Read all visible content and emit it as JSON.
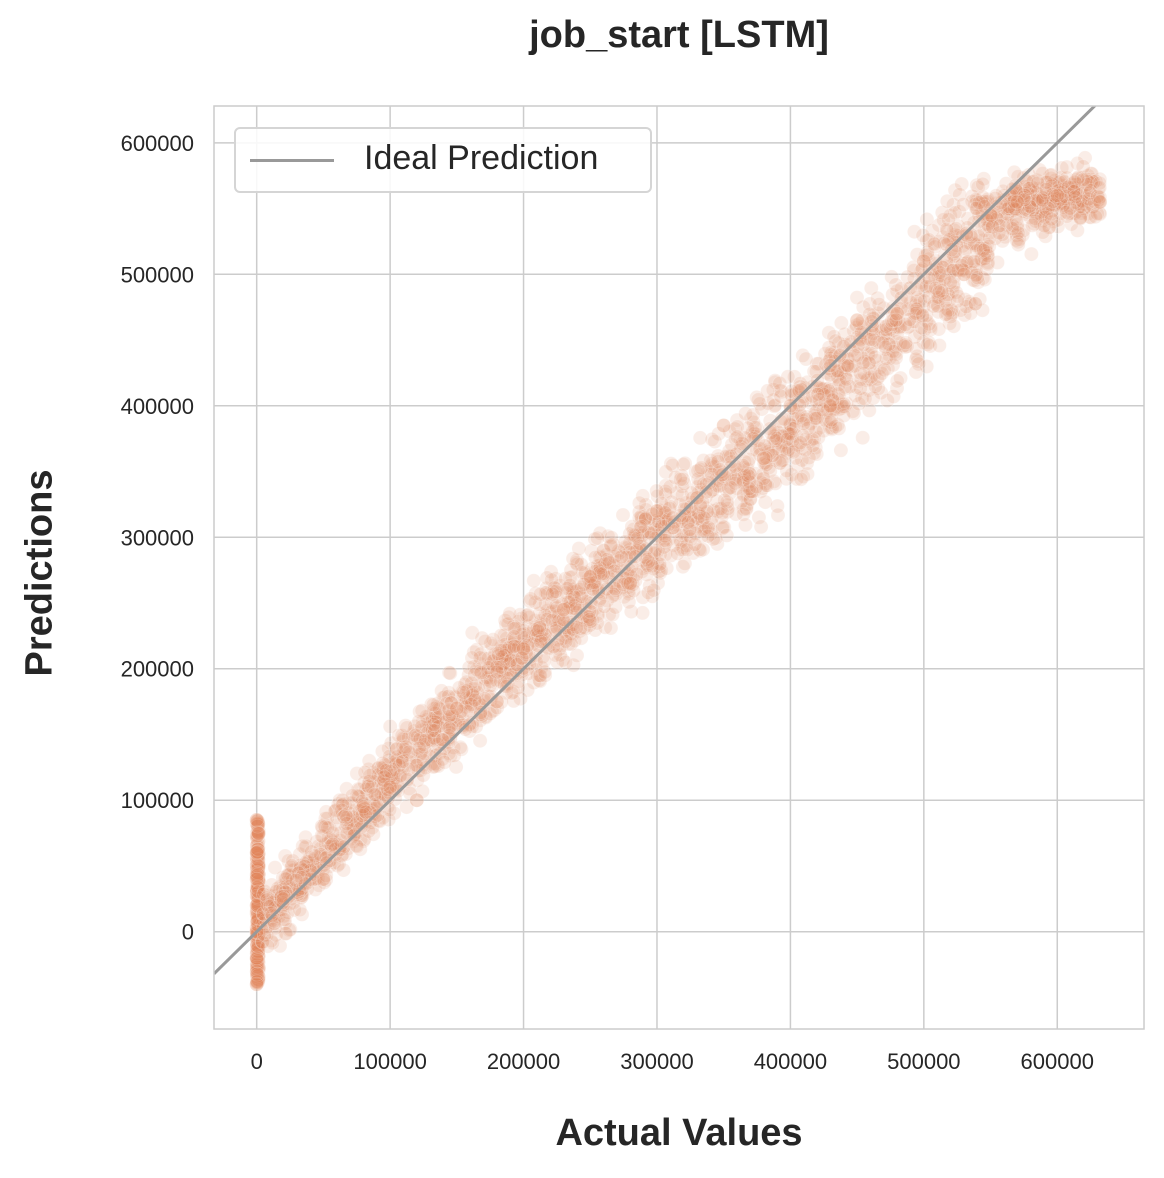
{
  "chart_data": {
    "type": "scatter",
    "title": "job_start [LSTM]",
    "xlabel": "Actual Values",
    "ylabel": "Predictions",
    "xlim": [
      -32000,
      665000
    ],
    "ylim": [
      -74000,
      628000
    ],
    "xticks": [
      0,
      100000,
      200000,
      300000,
      400000,
      500000,
      600000
    ],
    "yticks": [
      0,
      100000,
      200000,
      300000,
      400000,
      500000,
      600000
    ],
    "grid": true,
    "legend_position": "top-left",
    "series": [
      {
        "name": "Ideal Prediction",
        "type": "line",
        "color": "#999999",
        "x": [
          -32000,
          665000
        ],
        "y": [
          -32000,
          665000
        ]
      },
      {
        "type": "scatter",
        "color": "#E0875C",
        "opacity": 0.15,
        "summary": {
          "x_range": [
            0,
            632000
          ],
          "zero_actual_predictions_range": [
            -40000,
            85000
          ],
          "typical_spread": 30000,
          "high_end_saturation": 560000
        },
        "points": [
          [
            0,
            -40000
          ],
          [
            0,
            -20000
          ],
          [
            0,
            0
          ],
          [
            0,
            20000
          ],
          [
            0,
            40000
          ],
          [
            0,
            60000
          ],
          [
            0,
            85000
          ],
          [
            20000,
            25000
          ],
          [
            50000,
            40000
          ],
          [
            80000,
            95000
          ],
          [
            100000,
            110000
          ],
          [
            120000,
            100000
          ],
          [
            150000,
            170000
          ],
          [
            180000,
            175000
          ],
          [
            200000,
            215000
          ],
          [
            230000,
            245000
          ],
          [
            250000,
            270000
          ],
          [
            280000,
            265000
          ],
          [
            300000,
            320000
          ],
          [
            330000,
            330000
          ],
          [
            350000,
            385000
          ],
          [
            380000,
            360000
          ],
          [
            400000,
            400000
          ],
          [
            430000,
            400000
          ],
          [
            450000,
            465000
          ],
          [
            480000,
            470000
          ],
          [
            500000,
            510000
          ],
          [
            530000,
            500000
          ],
          [
            550000,
            545000
          ],
          [
            570000,
            555000
          ],
          [
            600000,
            560000
          ],
          [
            632000,
            555000
          ]
        ]
      }
    ]
  }
}
